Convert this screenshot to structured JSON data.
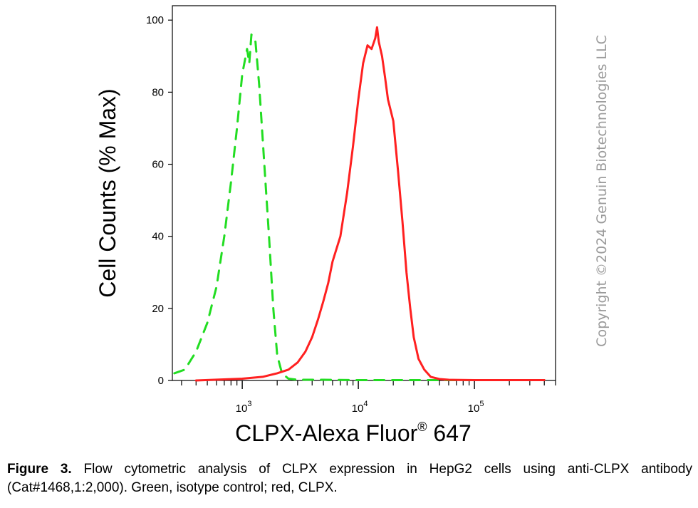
{
  "chart_data": {
    "type": "line",
    "xlabel_main": "CLPX-Alexa Fluor",
    "xlabel_sup": "®",
    "xlabel_tail": " 647",
    "ylabel": "Cell Counts (% Max)",
    "x_scale": "log",
    "xlim": [
      250,
      500000
    ],
    "ylim": [
      0,
      104
    ],
    "y_ticks": [
      0,
      20,
      40,
      60,
      80,
      100
    ],
    "x_major_ticks": [
      {
        "base": "10",
        "exp": "3",
        "value": 1000
      },
      {
        "base": "10",
        "exp": "4",
        "value": 10000
      },
      {
        "base": "10",
        "exp": "5",
        "value": 100000
      }
    ],
    "series": [
      {
        "color": "#22dd22",
        "style": "dashed",
        "x": [
          260,
          320,
          400,
          500,
          600,
          700,
          800,
          900,
          1000,
          1100,
          1150,
          1200,
          1300,
          1400,
          1550,
          1700,
          1850,
          2000,
          2200,
          2500,
          3000,
          5000,
          10000,
          50000,
          400000
        ],
        "y": [
          2,
          3,
          8,
          16,
          26,
          40,
          55,
          70,
          85,
          92,
          88,
          96,
          94,
          82,
          60,
          40,
          20,
          7,
          2,
          0.5,
          0.2,
          0.2,
          0.1,
          0.1,
          0.1
        ]
      },
      {
        "color": "#ff2020",
        "style": "solid",
        "x": [
          400,
          1000,
          1500,
          2000,
          2500,
          3000,
          3500,
          4000,
          4500,
          5000,
          5500,
          6000,
          7000,
          8000,
          9000,
          10000,
          11000,
          12000,
          13000,
          14000,
          14500,
          15000,
          16000,
          17000,
          18000,
          20000,
          22000,
          24000,
          26000,
          28000,
          30000,
          33000,
          37000,
          42000,
          50000,
          60000,
          100000,
          400000
        ],
        "y": [
          0,
          0.5,
          1,
          2,
          3,
          5,
          8,
          12,
          17,
          22,
          27,
          33,
          40,
          52,
          65,
          78,
          88,
          93,
          92,
          95,
          98,
          94,
          90,
          84,
          78,
          72,
          58,
          44,
          30,
          20,
          12,
          6,
          3,
          1,
          0.4,
          0.2,
          0.1,
          0.1
        ]
      }
    ]
  },
  "watermark": "Copyright ©2024 Genuin Biotechnologies LLC",
  "caption": {
    "label": "Figure 3.",
    "text": " Flow cytometric analysis of CLPX expression in HepG2 cells using anti-CLPX antibody (Cat#1468,1:2,000). Green, isotype control; red, CLPX."
  }
}
